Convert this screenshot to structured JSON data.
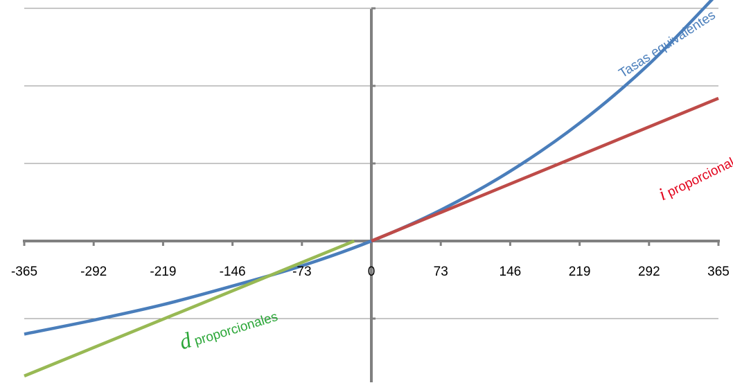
{
  "chart_data": {
    "type": "line",
    "title": "",
    "xlabel": "",
    "ylabel": "",
    "categories": [
      "-365",
      "-292",
      "-219",
      "-146",
      "-73",
      "0",
      "73",
      "146",
      "219",
      "292",
      "365"
    ],
    "xlim": [
      -365,
      365
    ],
    "ylim": [
      -0.75,
      1.5
    ],
    "y_ticks": [
      -0.5,
      0,
      0.5,
      1,
      1.5
    ],
    "y_tick_labels_visible": false,
    "grid": "horizontal",
    "legend": "none",
    "series": [
      {
        "key": "equiv",
        "color": "#4a7ebb",
        "x": [
          -365,
          -292,
          -219,
          -146,
          -73,
          0,
          73,
          146,
          219,
          292,
          365
        ],
        "values": [
          -0.6,
          -0.51,
          -0.41,
          -0.29,
          -0.16,
          0.0,
          0.2,
          0.45,
          0.76,
          1.14,
          1.6
        ]
      },
      {
        "key": "prop_i",
        "color": "#be4b48",
        "x": [
          0,
          365
        ],
        "values": [
          0.0,
          0.92
        ]
      },
      {
        "key": "prop_d",
        "color": "#98b954",
        "x": [
          -365,
          -18
        ],
        "values": [
          -0.87,
          0.0
        ]
      }
    ],
    "annotations": [
      {
        "series": "equiv",
        "text": "Tasas equivalentes",
        "color": "#4a7ebb",
        "x": 264,
        "y": 1.05,
        "angle": -33
      },
      {
        "series": "prop_i",
        "symbol": "i",
        "text": "proporcionales",
        "color": "#e2001a",
        "x": 306,
        "y": 0.26,
        "angle": -26
      },
      {
        "series": "prop_d",
        "symbol": "d",
        "text": "proporcionales",
        "color": "#2aa637",
        "x": -199,
        "y": -0.7,
        "angle": -17
      }
    ]
  }
}
